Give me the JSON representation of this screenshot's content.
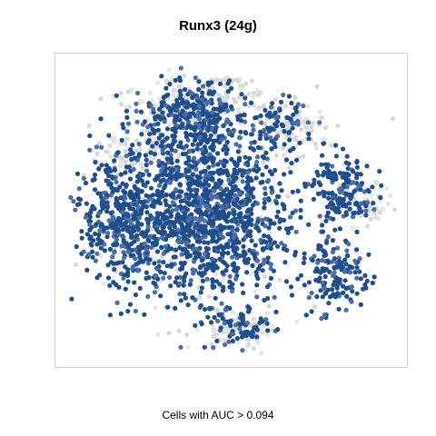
{
  "chart_data": {
    "type": "scatter",
    "title": "Runx3 (24g)",
    "subtitle": "",
    "xlabel": "Cells with AUC > 0.094",
    "ylabel": "",
    "grid": false,
    "legend": "none",
    "colors": {
      "above_threshold": "#1f4e8c",
      "above_threshold_light": "#4a6fa8",
      "below_threshold": "#d9d9d9",
      "frame": "#cfcfcf"
    },
    "series": [
      {
        "label_key": "cells_above_threshold",
        "color": "#1f4e8c",
        "clusters": [
          {
            "cx": 0.42,
            "cy": 0.5,
            "sx": 0.17,
            "sy": 0.2,
            "n": 1400
          },
          {
            "cx": 0.4,
            "cy": 0.2,
            "sx": 0.1,
            "sy": 0.07,
            "n": 260
          },
          {
            "cx": 0.18,
            "cy": 0.55,
            "sx": 0.08,
            "sy": 0.12,
            "n": 300
          },
          {
            "cx": 0.82,
            "cy": 0.44,
            "sx": 0.06,
            "sy": 0.07,
            "n": 160
          },
          {
            "cx": 0.79,
            "cy": 0.7,
            "sx": 0.06,
            "sy": 0.07,
            "n": 140
          },
          {
            "cx": 0.52,
            "cy": 0.87,
            "sx": 0.06,
            "sy": 0.04,
            "n": 70
          },
          {
            "cx": 0.64,
            "cy": 0.22,
            "sx": 0.05,
            "sy": 0.05,
            "n": 60
          }
        ]
      },
      {
        "label_key": "cells_below_threshold",
        "color": "#d9d9d9",
        "clusters": [
          {
            "cx": 0.42,
            "cy": 0.15,
            "sx": 0.16,
            "sy": 0.06,
            "n": 180
          },
          {
            "cx": 0.68,
            "cy": 0.25,
            "sx": 0.06,
            "sy": 0.06,
            "n": 90
          },
          {
            "cx": 0.88,
            "cy": 0.48,
            "sx": 0.05,
            "sy": 0.04,
            "n": 60
          },
          {
            "cx": 0.52,
            "cy": 0.88,
            "sx": 0.07,
            "sy": 0.04,
            "n": 90
          },
          {
            "cx": 0.22,
            "cy": 0.32,
            "sx": 0.08,
            "sy": 0.06,
            "n": 80
          },
          {
            "cx": 0.4,
            "cy": 0.55,
            "sx": 0.2,
            "sy": 0.2,
            "n": 160
          }
        ]
      }
    ]
  }
}
